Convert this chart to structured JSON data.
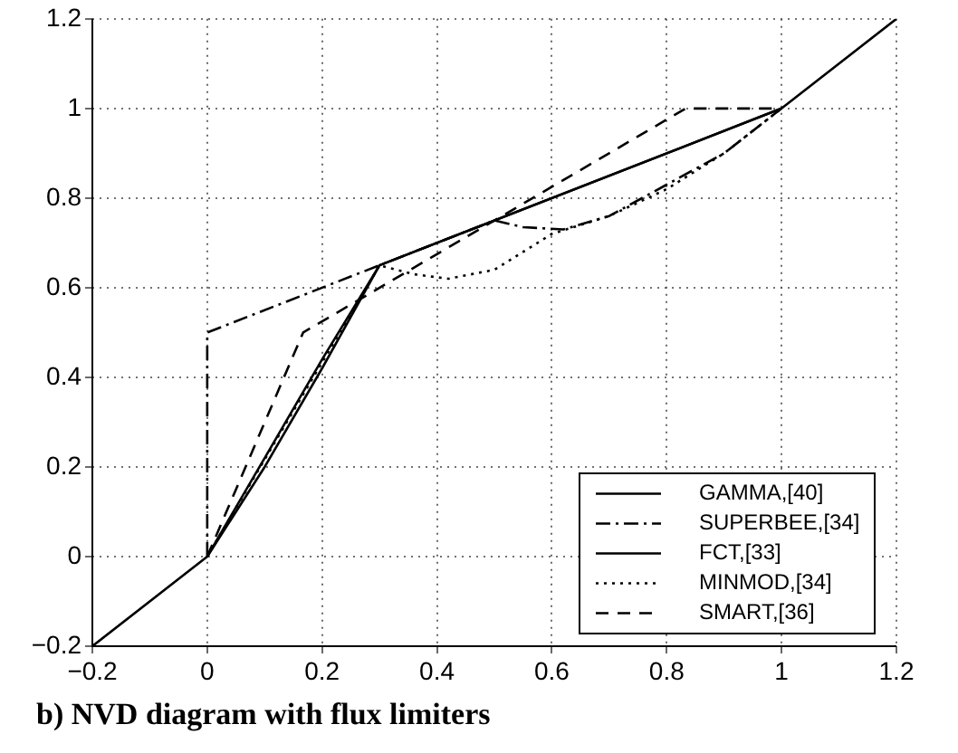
{
  "chart_data": {
    "type": "line",
    "annotations": [
      "b) NVD diagram with flux limiters"
    ],
    "xlim": [
      -0.2,
      1.2
    ],
    "ylim": [
      -0.2,
      1.2
    ],
    "xticks": [
      {
        "value": -0.2,
        "label": "−0.2"
      },
      0,
      0.2,
      0.4,
      0.6,
      0.8,
      1,
      1.2
    ],
    "yticks": [
      {
        "value": -0.2,
        "label": "−0.2"
      },
      0,
      0.2,
      0.4,
      0.6,
      0.8,
      1,
      1.2
    ],
    "grid": true,
    "legend": "bottom right",
    "marker": "none",
    "series": [
      {
        "name": "GAMMA,[40]",
        "color": "#000000",
        "line_style": "solid",
        "x": [
          -0.2,
          0,
          0.1,
          0.2,
          0.3,
          1,
          1.2
        ],
        "values": [
          -0.2,
          0,
          0.22,
          0.44,
          0.65,
          1,
          1.2
        ]
      },
      {
        "name": "SUPERBEE,[34]",
        "color": "#000000",
        "line_style": "dashdot",
        "x": [
          0,
          0,
          0.5,
          0.55,
          0.62,
          0.7,
          0.8,
          0.9,
          1
        ],
        "values": [
          0,
          0.5,
          0.75,
          0.735,
          0.73,
          0.76,
          0.83,
          0.9,
          1
        ]
      },
      {
        "name": "FCT,[33]",
        "color": "#000000",
        "line_style": "solid",
        "x": [
          0,
          0.1,
          0.2,
          0.3,
          1
        ],
        "values": [
          0,
          0.2,
          0.42,
          0.65,
          1
        ]
      },
      {
        "name": "MINMOD,[34]",
        "color": "#000000",
        "line_style": "dotted",
        "x": [
          0,
          0.3,
          0.36,
          0.42,
          0.5,
          0.6,
          0.7,
          0.8,
          0.9,
          1
        ],
        "values": [
          0,
          0.65,
          0.63,
          0.62,
          0.64,
          0.72,
          0.76,
          0.82,
          0.9,
          1
        ]
      },
      {
        "name": "SMART,[36]",
        "color": "#000000",
        "line_style": "dashed",
        "x": [
          0,
          0.167,
          0.5,
          0.833,
          1
        ],
        "values": [
          0,
          0.5,
          0.75,
          1,
          1
        ]
      }
    ]
  }
}
